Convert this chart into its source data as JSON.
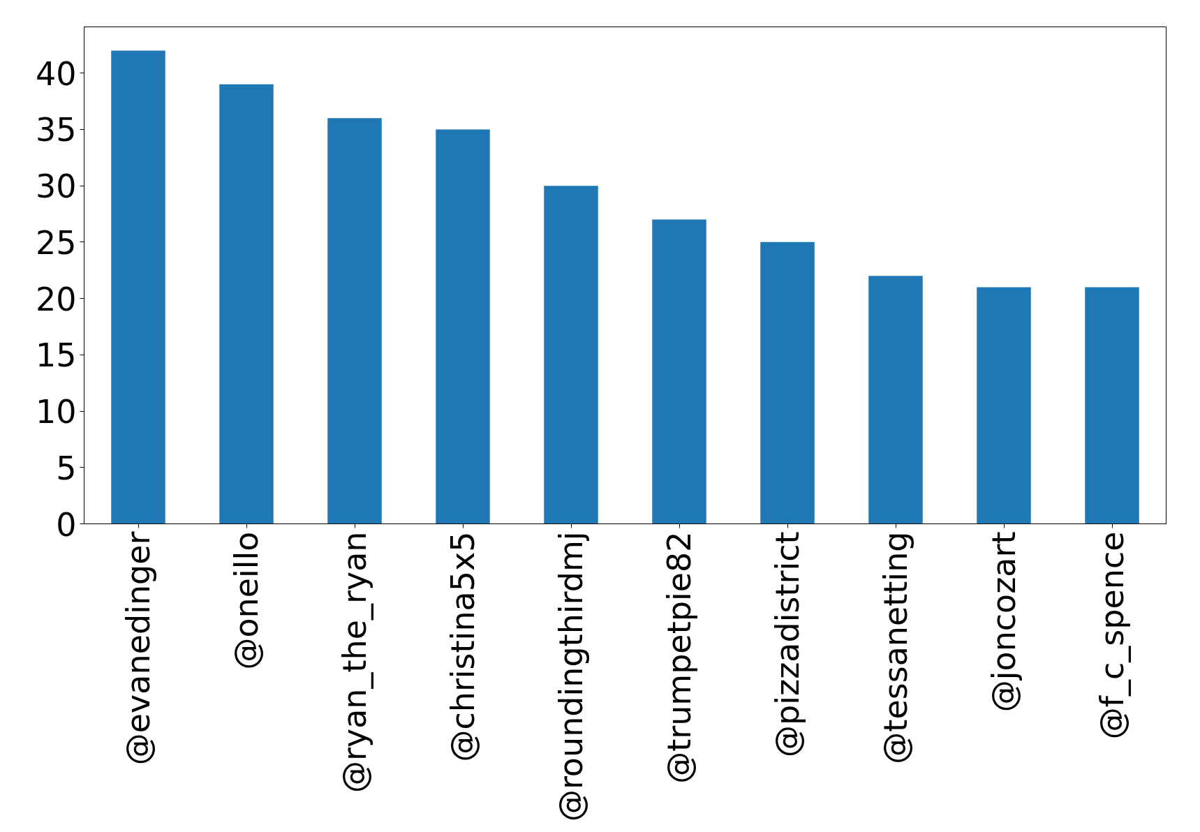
{
  "chart_data": {
    "type": "bar",
    "categories": [
      "@evanedinger",
      "@oneillo",
      "@ryan_the_ryan",
      "@christina5x5",
      "@roundingthirdmj",
      "@trumpetpie82",
      "@pizzadistrict",
      "@tessanetting",
      "@joncozart",
      "@f_c_spence"
    ],
    "values": [
      42,
      39,
      36,
      35,
      30,
      27,
      25,
      22,
      21,
      21
    ],
    "color": "#1f77b4",
    "ylim": [
      0,
      44.1
    ],
    "yticks": [
      0,
      5,
      10,
      15,
      20,
      25,
      30,
      35,
      40
    ],
    "grid": false
  }
}
